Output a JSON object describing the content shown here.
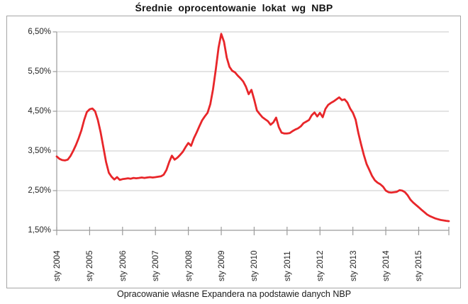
{
  "page": {
    "title": "Średnie oprocentowanie lokat wg NBP",
    "caption": "Opracowanie własne Expandera na podstawie danych NBP"
  },
  "chart_data": {
    "type": "line",
    "title": "Średnie oprocentowanie lokat wg NBP",
    "series_name": "Średnie oprocentowanie lokat wg NBP",
    "unit": "%",
    "frequency": "monthly",
    "x_start_label": "sty 2004",
    "x_end_label": "gru 2015",
    "x_tick_labels": [
      "sty 2004",
      "sty 2005",
      "sty 2006",
      "sty 2007",
      "sty 2008",
      "sty 2009",
      "sty 2010",
      "sty 2011",
      "sty 2012",
      "sty 2013",
      "sty 2014",
      "sty 2015"
    ],
    "y_tick_labels": [
      "1,50%",
      "2,50%",
      "3,50%",
      "4,50%",
      "5,50%",
      "6,50%"
    ],
    "y_tick_values": [
      1.5,
      2.5,
      3.5,
      4.5,
      5.5,
      6.5
    ],
    "ylim": [
      1.5,
      6.5
    ],
    "grid": true,
    "legend": false,
    "line_color": "#e8262a",
    "grid_color": "#c9c9c9",
    "axis_color": "#9b9b9b",
    "frame_color": "#a6a6a6",
    "text_color": "#262626",
    "values": [
      3.36,
      3.3,
      3.27,
      3.26,
      3.28,
      3.37,
      3.5,
      3.65,
      3.82,
      4.02,
      4.28,
      4.48,
      4.55,
      4.57,
      4.5,
      4.28,
      3.97,
      3.6,
      3.22,
      2.95,
      2.85,
      2.78,
      2.84,
      2.77,
      2.79,
      2.8,
      2.81,
      2.8,
      2.82,
      2.81,
      2.82,
      2.83,
      2.82,
      2.83,
      2.84,
      2.83,
      2.84,
      2.85,
      2.86,
      2.9,
      3.02,
      3.22,
      3.38,
      3.28,
      3.33,
      3.4,
      3.48,
      3.6,
      3.7,
      3.63,
      3.82,
      3.96,
      4.12,
      4.27,
      4.37,
      4.46,
      4.68,
      5.05,
      5.55,
      6.1,
      6.45,
      6.25,
      5.85,
      5.62,
      5.52,
      5.48,
      5.4,
      5.33,
      5.25,
      5.12,
      4.93,
      5.04,
      4.8,
      4.52,
      4.43,
      4.35,
      4.3,
      4.25,
      4.16,
      4.22,
      4.34,
      4.1,
      3.96,
      3.94,
      3.94,
      3.95,
      4.0,
      4.04,
      4.07,
      4.12,
      4.2,
      4.24,
      4.28,
      4.4,
      4.47,
      4.37,
      4.46,
      4.35,
      4.56,
      4.66,
      4.71,
      4.75,
      4.8,
      4.85,
      4.78,
      4.8,
      4.72,
      4.57,
      4.46,
      4.29,
      3.95,
      3.66,
      3.4,
      3.17,
      3.02,
      2.87,
      2.76,
      2.7,
      2.66,
      2.6,
      2.5,
      2.46,
      2.45,
      2.46,
      2.47,
      2.51,
      2.5,
      2.46,
      2.38,
      2.27,
      2.2,
      2.14,
      2.08,
      2.02,
      1.96,
      1.9,
      1.86,
      1.83,
      1.8,
      1.78,
      1.76,
      1.75,
      1.74,
      1.73
    ]
  }
}
